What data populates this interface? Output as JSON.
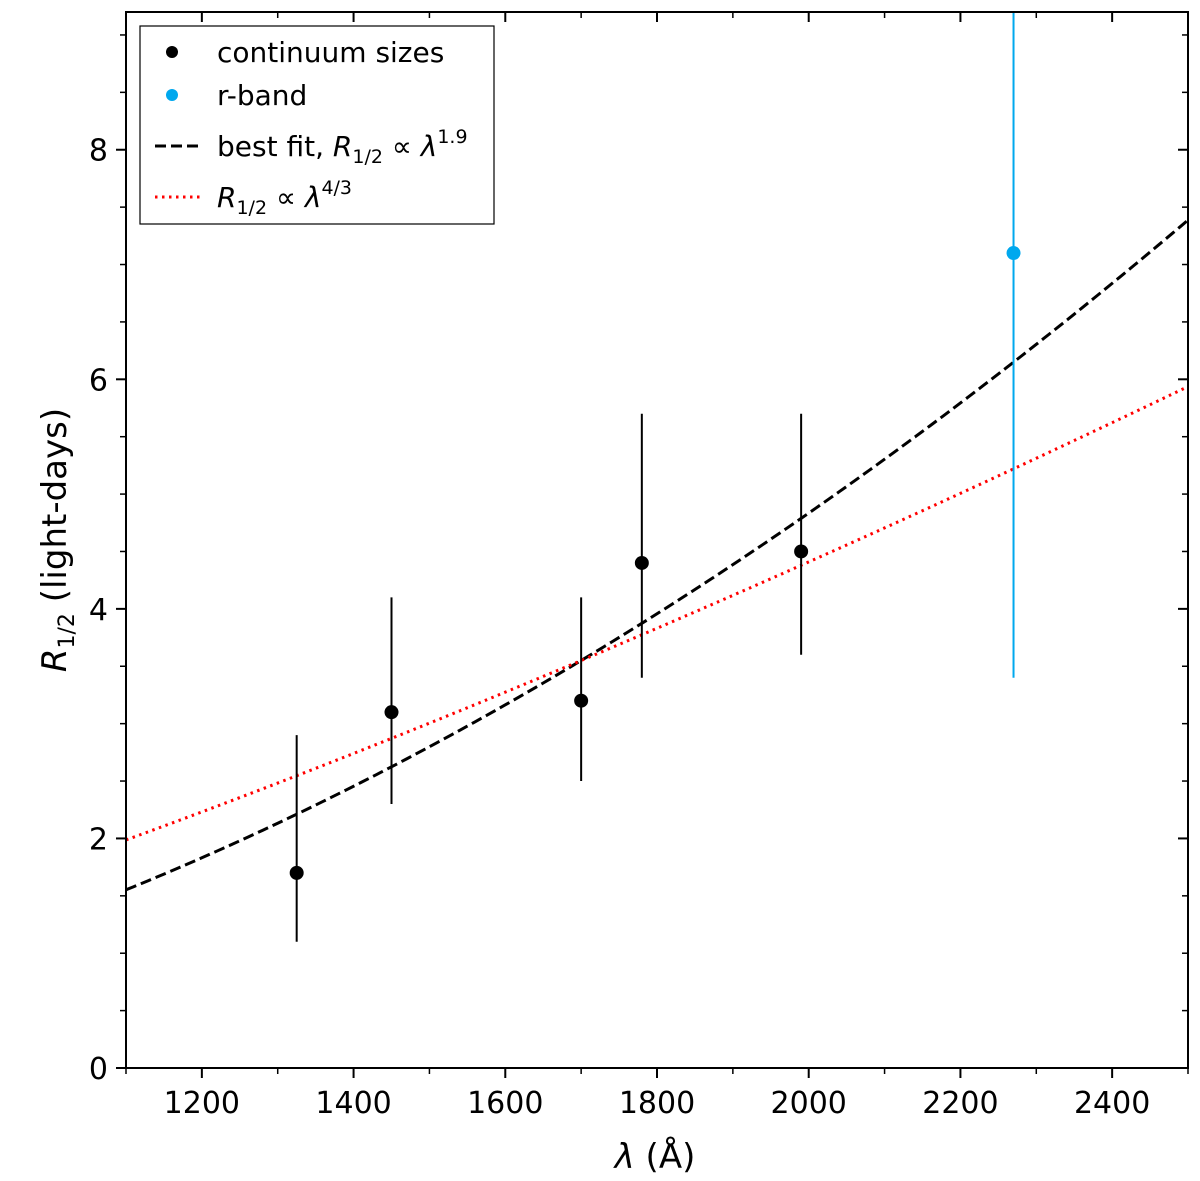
{
  "chart_data": {
    "type": "scatter",
    "xlabel": {
      "symbol": "λ",
      "unit": " (Å)"
    },
    "ylabel": {
      "symbol": "R",
      "sub": "1/2",
      "unit": " (light-days)"
    },
    "xlim": [
      1100,
      2500
    ],
    "ylim": [
      0,
      9.2
    ],
    "x_ticks": [
      1200,
      1400,
      1600,
      1800,
      2000,
      2200,
      2400
    ],
    "x_tick_labels": [
      "1200",
      "1400",
      "1600",
      "1800",
      "2000",
      "2200",
      "2400"
    ],
    "x_minor_step": 100,
    "y_ticks": [
      0,
      2,
      4,
      6,
      8
    ],
    "y_tick_labels": [
      "0",
      "2",
      "4",
      "6",
      "8"
    ],
    "y_minor_step": 0.5,
    "series": [
      {
        "name": "continuum sizes",
        "color": "#000000",
        "points": [
          {
            "x": 1325,
            "y": 1.7,
            "err_low": 1.1,
            "err_high": 2.9
          },
          {
            "x": 1450,
            "y": 3.1,
            "err_low": 2.3,
            "err_high": 4.1
          },
          {
            "x": 1700,
            "y": 3.2,
            "err_low": 2.5,
            "err_high": 4.1
          },
          {
            "x": 1780,
            "y": 4.4,
            "err_low": 3.4,
            "err_high": 5.7
          },
          {
            "x": 1990,
            "y": 4.5,
            "err_low": 3.6,
            "err_high": 5.7
          }
        ]
      },
      {
        "name": "r-band",
        "color": "#00a8ee",
        "points": [
          {
            "x": 2270,
            "y": 7.1,
            "err_low": 3.4,
            "err_high": 9.2
          }
        ]
      }
    ],
    "curves": [
      {
        "name": "best fit",
        "exponent": 1.9,
        "exponent_label": "1.9",
        "anchor_x": 1700,
        "anchor_y": 3.55,
        "color": "#000000",
        "style": "dashed"
      },
      {
        "name": "",
        "exponent": 1.3333,
        "exponent_label": "4/3",
        "anchor_x": 1700,
        "anchor_y": 3.55,
        "color": "#ff0000",
        "style": "dotted"
      }
    ],
    "legend": {
      "position": "top-left",
      "entries": [
        {
          "label": "continuum sizes"
        },
        {
          "label": "r-band"
        },
        {
          "prefix": "best fit, ",
          "symbol": "R",
          "sub": "1/2",
          "prop": " ∝ ",
          "var": "λ",
          "sup": "1.9"
        },
        {
          "prefix": "",
          "symbol": "R",
          "sub": "1/2",
          "prop": " ∝ ",
          "var": "λ",
          "sup": "4/3"
        }
      ]
    }
  }
}
